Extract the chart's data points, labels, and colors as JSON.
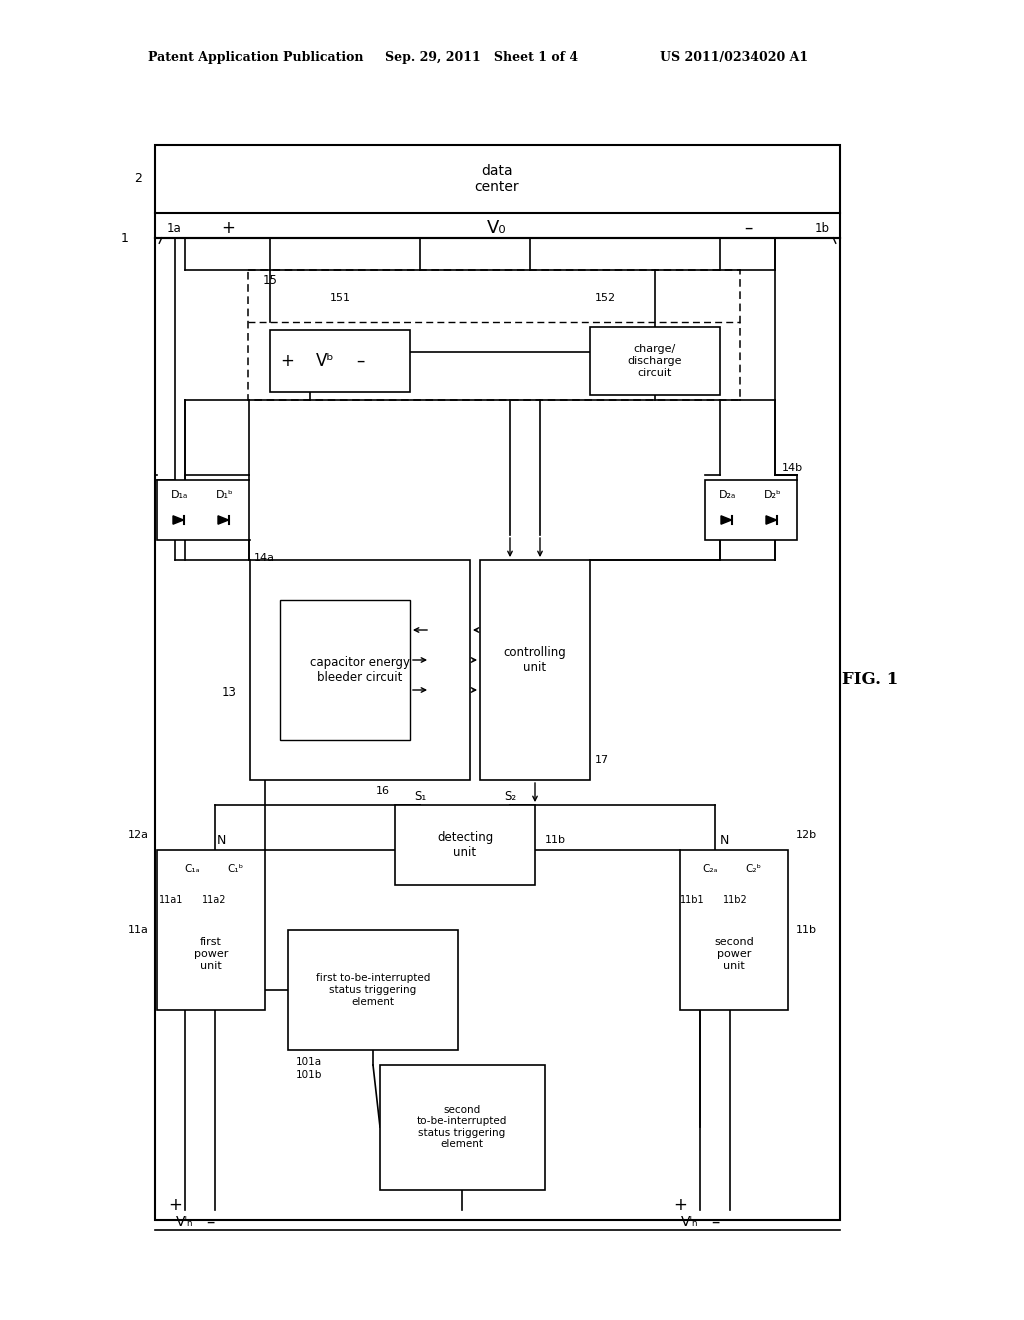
{
  "bg_color": "#ffffff",
  "header_left": "Patent Application Publication",
  "header_mid": "Sep. 29, 2011   Sheet 1 of 4",
  "header_right": "US 2011/0234020 A1",
  "fig_label": "FIG. 1"
}
